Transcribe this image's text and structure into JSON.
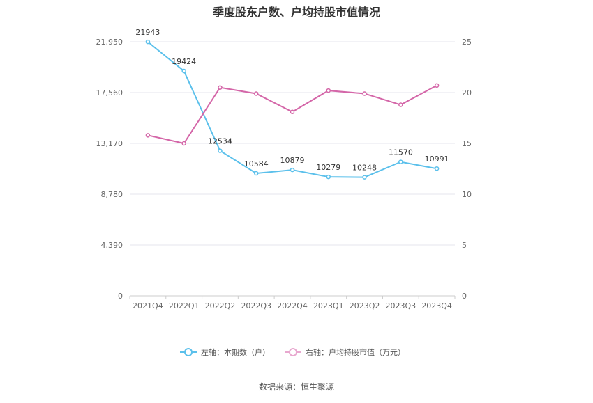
{
  "chart_data": {
    "type": "line",
    "title": "季度股东户数、户均持股市值情况",
    "categories": [
      "2021Q4",
      "2022Q1",
      "2022Q2",
      "2022Q3",
      "2022Q4",
      "2023Q1",
      "2023Q2",
      "2023Q3",
      "2023Q4"
    ],
    "left_axis": {
      "min": 0,
      "max": 21950,
      "ticks": [
        "0",
        "4,390",
        "8,780",
        "13,170",
        "17,560",
        "21,950"
      ],
      "tick_values": [
        0,
        4390,
        8780,
        13170,
        17560,
        21950
      ]
    },
    "right_axis": {
      "min": 0,
      "max": 25,
      "ticks": [
        "0",
        "5",
        "10",
        "15",
        "20",
        "25"
      ],
      "tick_values": [
        0,
        5,
        10,
        15,
        20,
        25
      ]
    },
    "series": [
      {
        "name": "左轴：本期数（户）",
        "axis": "left",
        "color": "#5bc0eb",
        "values": [
          21943,
          19424,
          12534,
          10584,
          10879,
          10279,
          10248,
          11570,
          10991
        ],
        "labels": [
          "21943",
          "19424",
          "12534",
          "10584",
          "10879",
          "10279",
          "10248",
          "11570",
          "10991"
        ]
      },
      {
        "name": "右轴：户均持股市值（万元）",
        "axis": "right",
        "color": "#d466a8",
        "values": [
          15.8,
          15.0,
          20.5,
          19.9,
          18.1,
          20.2,
          19.9,
          18.8,
          20.7
        ]
      }
    ],
    "grid": true,
    "legend_position": "bottom"
  },
  "source": "数据来源：恒生聚源"
}
